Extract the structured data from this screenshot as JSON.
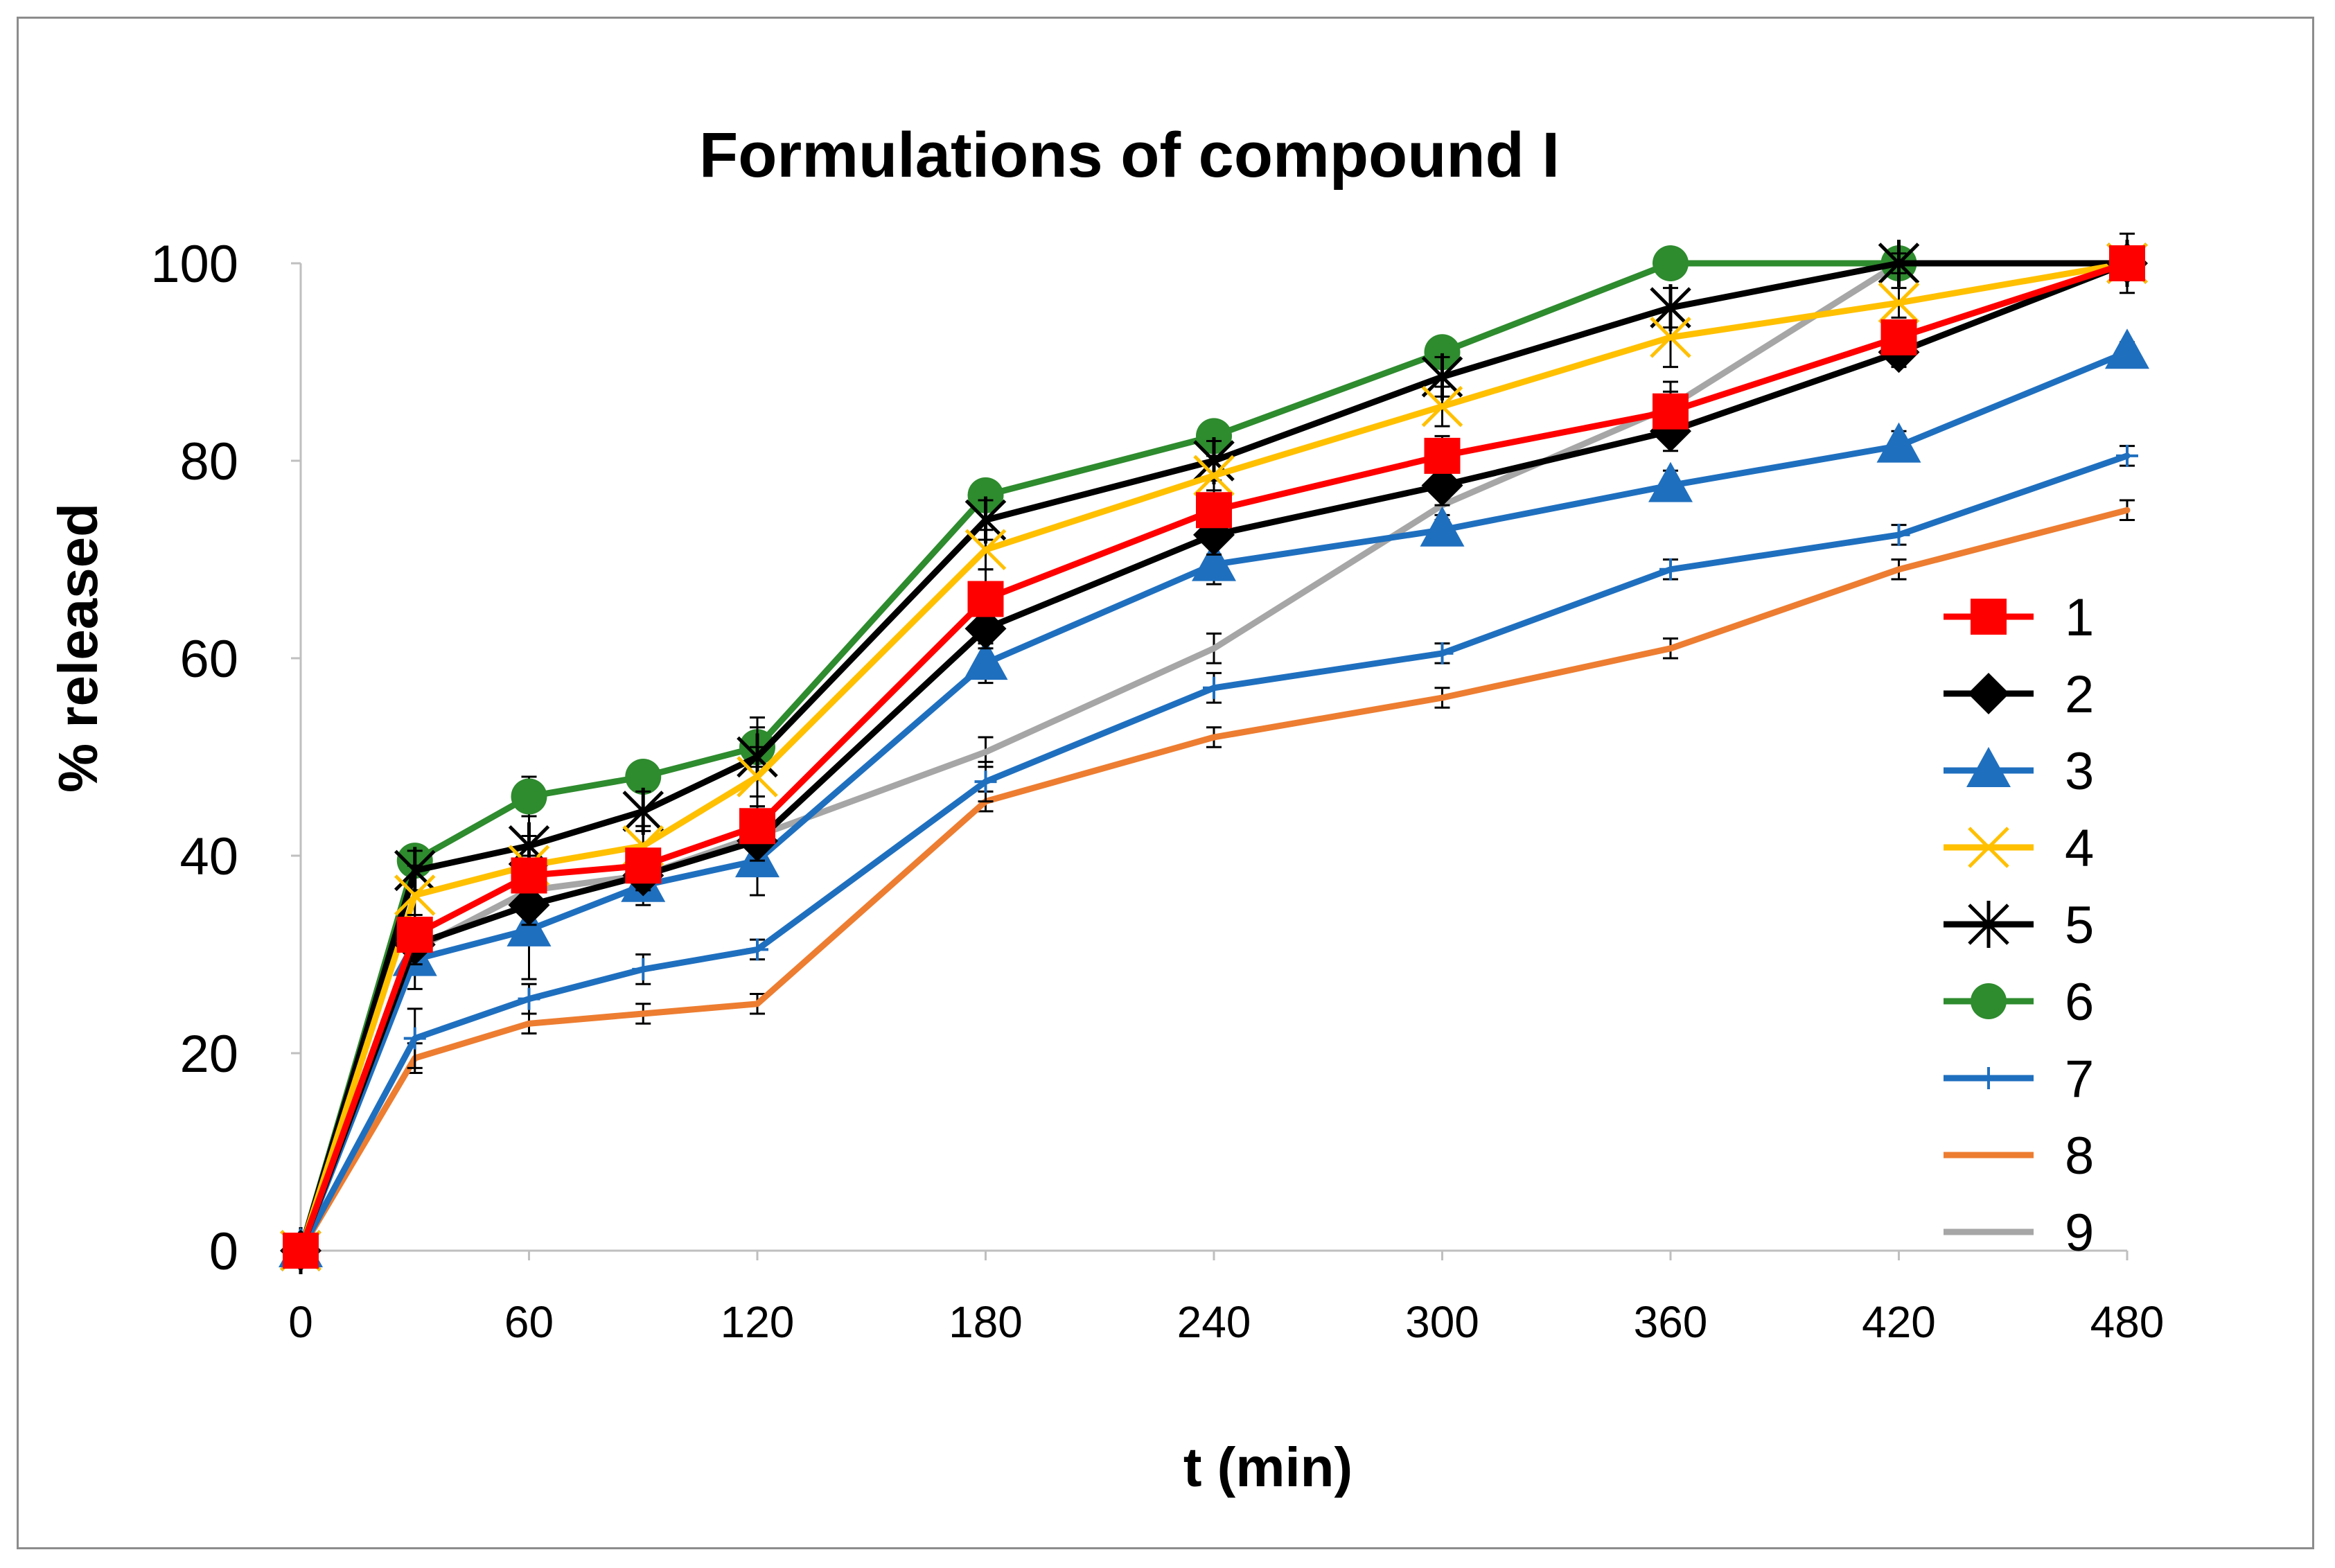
{
  "chart_data": {
    "type": "line",
    "title": "Formulations of compound I",
    "xlabel": "t (min)",
    "ylabel": "% released",
    "x": [
      0,
      30,
      60,
      90,
      120,
      180,
      240,
      300,
      360,
      420,
      480
    ],
    "xticks": [
      0,
      60,
      120,
      180,
      240,
      300,
      360,
      420,
      480
    ],
    "xtick_labels": [
      "0",
      "60",
      "120",
      "180",
      "240",
      "300",
      "360",
      "420",
      "480"
    ],
    "yticks": [
      0,
      20,
      40,
      60,
      80,
      100
    ],
    "ytick_labels": [
      "0",
      "20",
      "40",
      "60",
      "80",
      "100"
    ],
    "xlim": [
      0,
      480
    ],
    "ylim": [
      0,
      100
    ],
    "grid": false,
    "legend_position": "right",
    "series": [
      {
        "name": "1",
        "color": "#ff0000",
        "marker": "square",
        "values": [
          0,
          32,
          38,
          39,
          43,
          66,
          75,
          80.5,
          85,
          92.5,
          100
        ],
        "errors": [
          0,
          2,
          2,
          1.5,
          2,
          3,
          2,
          2,
          3,
          1.5,
          0
        ]
      },
      {
        "name": "2",
        "color": "#000000",
        "marker": "diamond",
        "values": [
          0,
          31,
          35,
          38,
          41.5,
          63,
          72.5,
          77.5,
          83,
          91,
          100
        ],
        "errors": [
          0,
          2,
          2,
          1.5,
          2,
          2,
          2,
          2,
          2,
          1.5,
          0
        ]
      },
      {
        "name": "3",
        "color": "#1f6fbf",
        "marker": "triangle",
        "values": [
          0,
          29.5,
          32.5,
          37,
          39.5,
          59.5,
          69.5,
          73,
          77.5,
          81.5,
          91
        ],
        "errors": [
          0,
          3,
          5,
          2,
          3.5,
          2,
          2,
          1.5,
          1.5,
          1.5,
          1
        ]
      },
      {
        "name": "4",
        "color": "#ffc000",
        "marker": "x",
        "values": [
          0,
          36,
          39,
          41,
          48,
          71,
          78.5,
          85.5,
          92.5,
          96,
          100
        ],
        "errors": [
          0,
          3,
          3,
          2,
          3,
          2,
          2,
          2,
          3,
          1.5,
          0
        ]
      },
      {
        "name": "5",
        "color": "#000000",
        "marker": "star",
        "values": [
          0,
          38.5,
          41,
          44.5,
          50,
          74,
          80,
          88.5,
          95.5,
          100,
          100
        ],
        "errors": [
          0,
          2,
          3,
          2,
          4,
          2,
          2,
          2,
          2,
          1,
          3
        ]
      },
      {
        "name": "6",
        "color": "#2e8b2e",
        "marker": "circle",
        "values": [
          0,
          39.5,
          46,
          48,
          51,
          76.5,
          82.5,
          91,
          100,
          100,
          100
        ],
        "errors": [
          0,
          1.5,
          2,
          1.5,
          2,
          1.5,
          1.5,
          1.5,
          1,
          1,
          1
        ]
      },
      {
        "name": "7",
        "color": "#1f6fbf",
        "marker": "plus",
        "values": [
          0,
          21.5,
          25.5,
          28.5,
          30.5,
          47.5,
          57,
          60.5,
          69,
          72.5,
          80.5
        ],
        "errors": [
          0,
          3,
          1.5,
          1.5,
          1,
          2,
          1.5,
          1,
          1,
          1,
          1
        ]
      },
      {
        "name": "8",
        "color": "#ed7d31",
        "marker": "none",
        "values": [
          0,
          19.5,
          23,
          24,
          25,
          45.5,
          52,
          56,
          61,
          69,
          75
        ],
        "errors": [
          0,
          1.5,
          1,
          1,
          1,
          1,
          1,
          1,
          1,
          1,
          1
        ]
      },
      {
        "name": "9",
        "color": "#a6a6a6",
        "marker": "none",
        "values": [
          0,
          30.5,
          36.5,
          38,
          42,
          50.5,
          61,
          75.5,
          85.5,
          100,
          100
        ],
        "errors": [
          0,
          2,
          1.5,
          1.5,
          1.5,
          1.5,
          1.5,
          1.5,
          1.5,
          0.5,
          0
        ]
      }
    ]
  }
}
